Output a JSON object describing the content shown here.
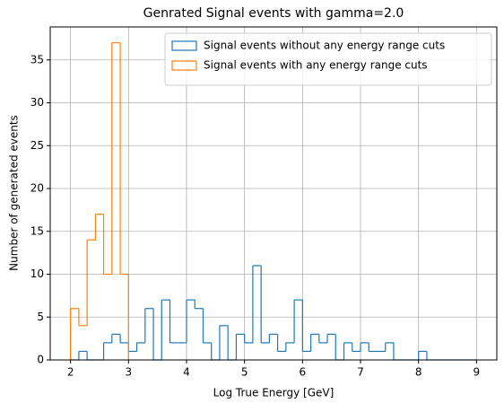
{
  "chart_data": {
    "type": "histogram",
    "title": "Genrated Signal events with gamma=2.0",
    "xlabel": "Log True Energy [GeV]",
    "ylabel": "Number of generated events",
    "xlim": [
      1.65,
      9.35
    ],
    "ylim": [
      0,
      38.85
    ],
    "xticks": [
      2,
      3,
      4,
      5,
      6,
      7,
      8,
      9
    ],
    "yticks": [
      0,
      5,
      10,
      15,
      20,
      25,
      30,
      35
    ],
    "grid": true,
    "legend": "upper right",
    "series": [
      {
        "name": "Signal events without any energy range cuts",
        "color": "#1f77b4",
        "bins": [
          2,
          2.143,
          2.286,
          2.429,
          2.571,
          2.714,
          2.857,
          3,
          3.143,
          3.286,
          3.429,
          3.571,
          3.714,
          3.857,
          4,
          4.143,
          4.286,
          4.429,
          4.571,
          4.714,
          4.857,
          5,
          5.143,
          5.286,
          5.429,
          5.571,
          5.714,
          5.857,
          6,
          6.143,
          6.286,
          6.429,
          6.571,
          6.714,
          6.857,
          7,
          7.143,
          7.286,
          7.429,
          7.571,
          7.714,
          7.857,
          8,
          8.143,
          8.286,
          8.429,
          8.571,
          8.714,
          8.857,
          9
        ],
        "values": [
          0,
          1,
          0,
          0,
          2,
          3,
          2,
          1,
          2,
          6,
          0,
          7,
          2,
          2,
          7,
          6,
          2,
          0,
          4,
          0,
          3,
          2,
          11,
          2,
          3,
          1,
          2,
          7,
          1,
          3,
          2,
          3,
          0,
          2,
          1,
          2,
          1,
          1,
          2,
          0,
          0,
          0,
          1,
          0,
          0,
          0,
          0,
          0,
          0
        ]
      },
      {
        "name": "Signal events with any energy range cuts",
        "color": "#ff7f0e",
        "bins": [
          2,
          2.143,
          2.286,
          2.429,
          2.571,
          2.714,
          2.857,
          3
        ],
        "values": [
          6,
          4,
          14,
          17,
          10,
          37,
          10
        ]
      }
    ]
  }
}
